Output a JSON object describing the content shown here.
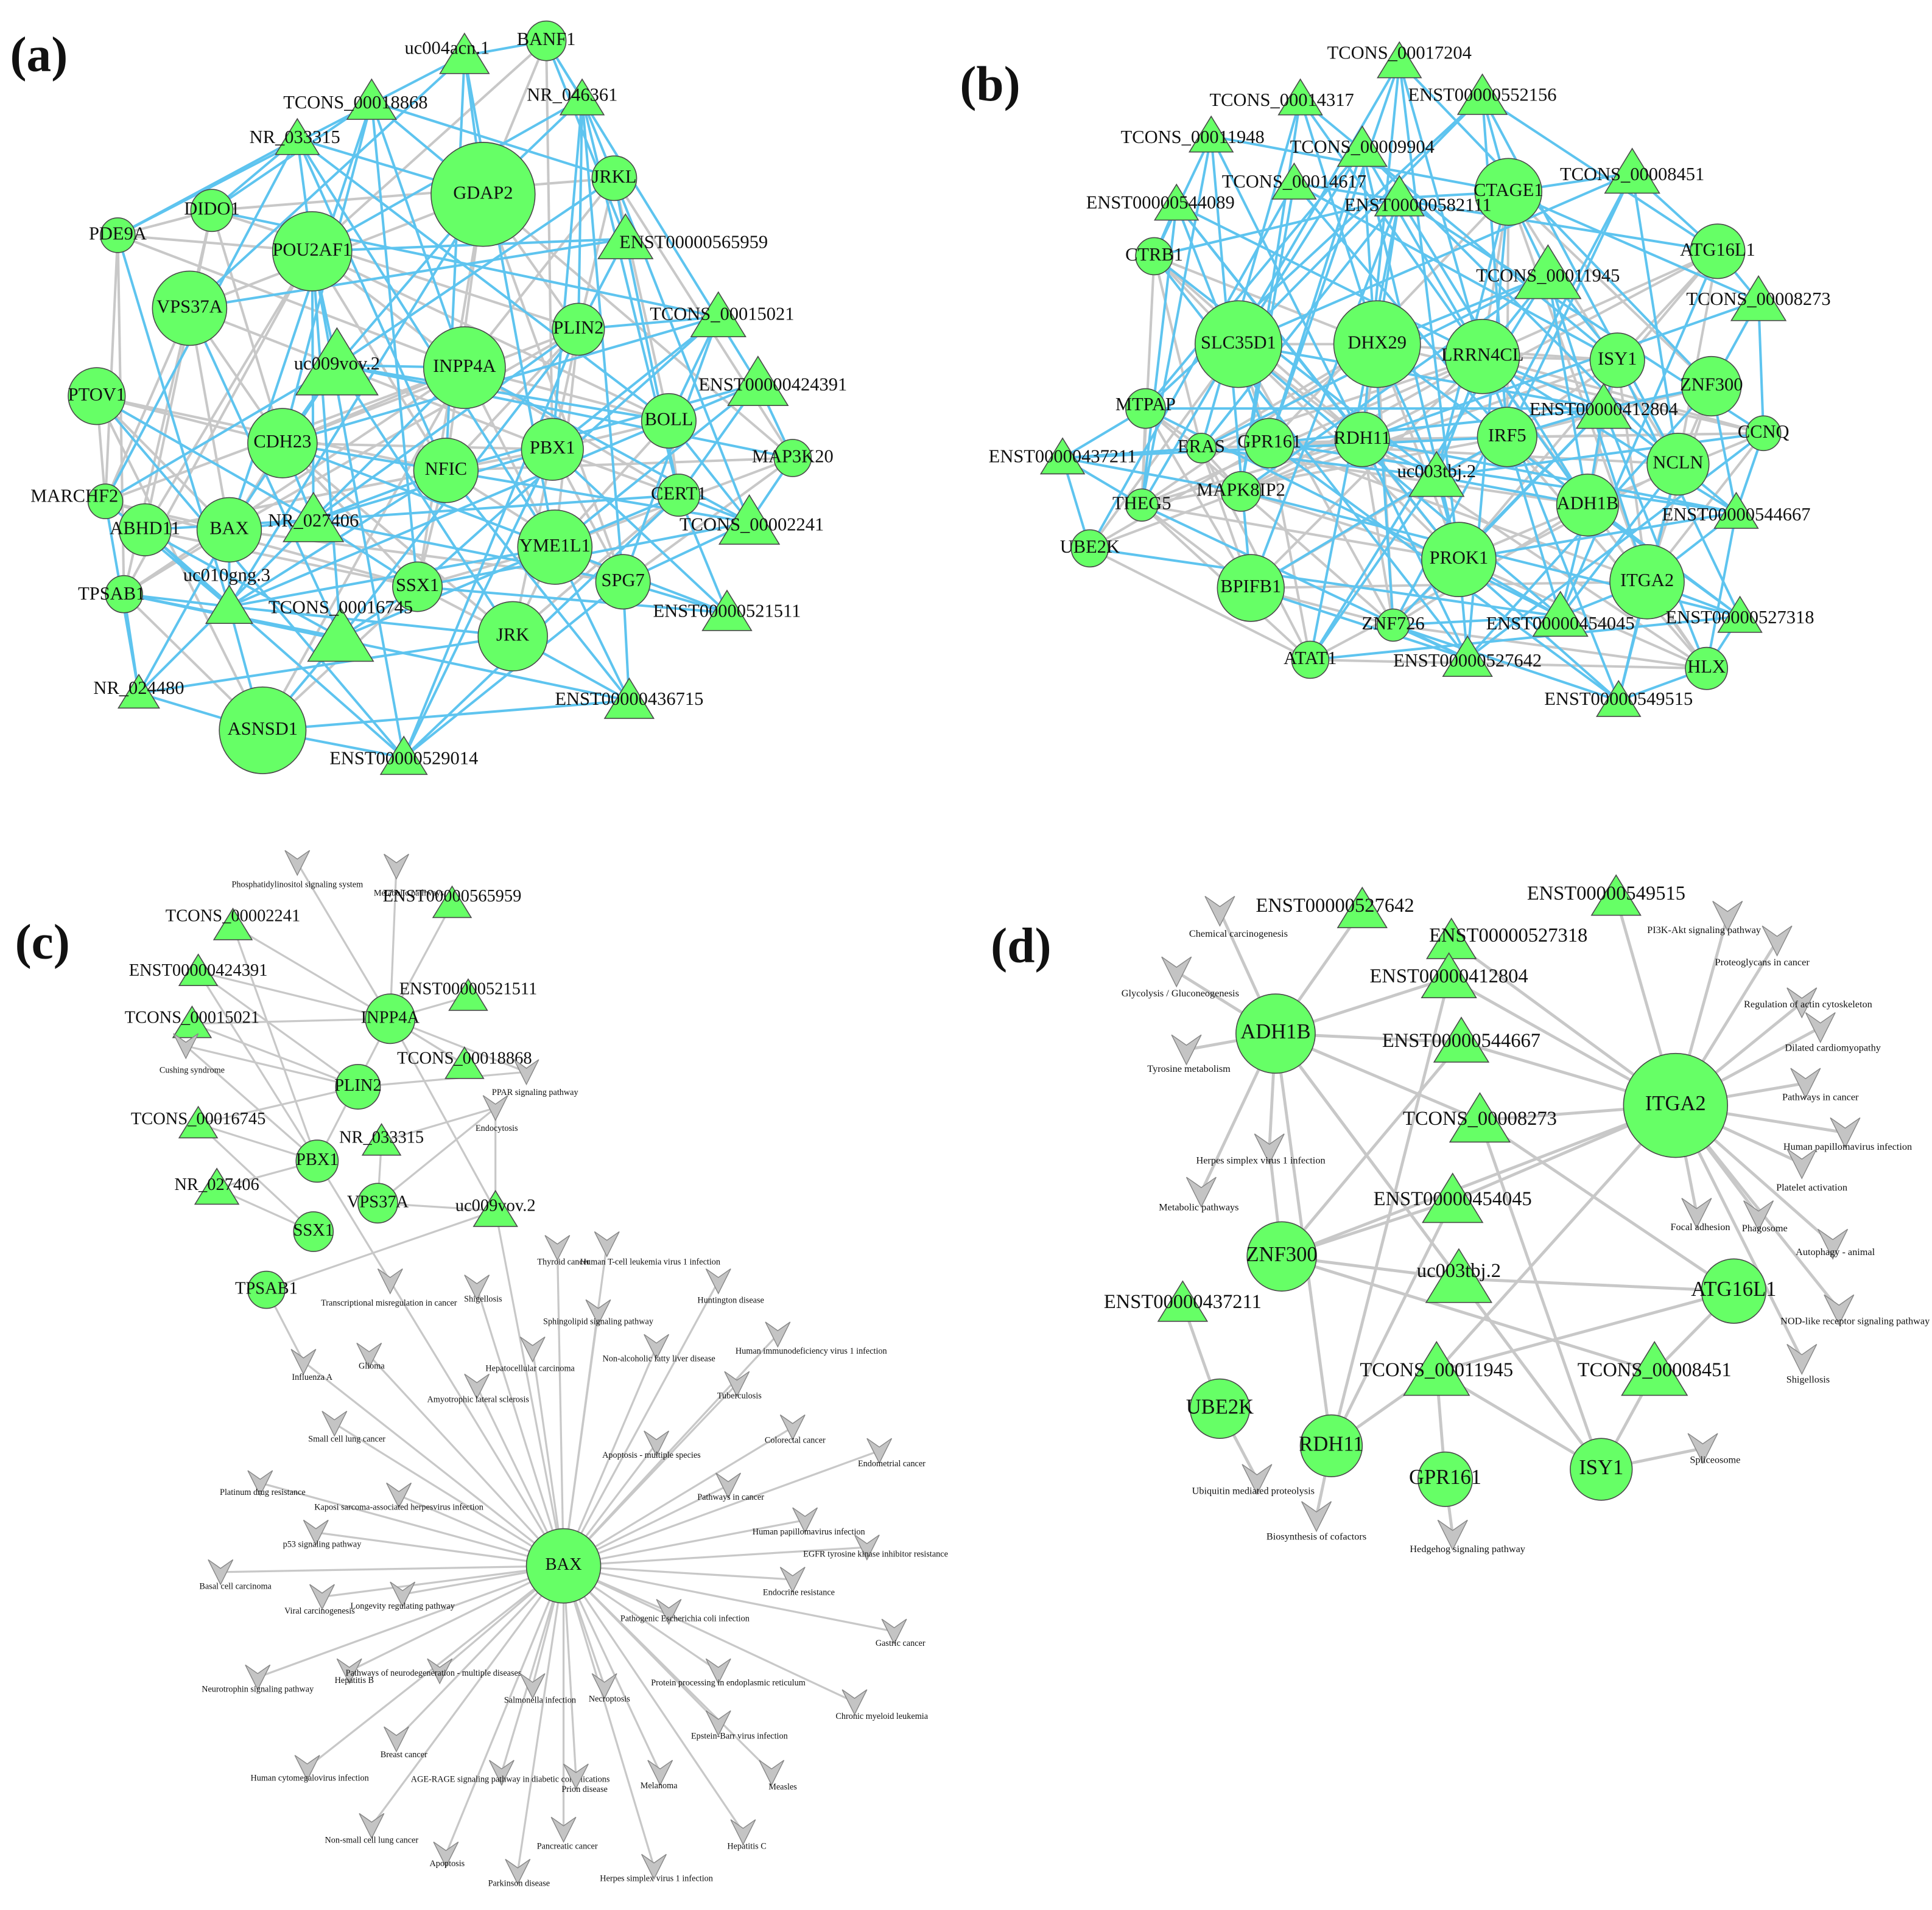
{
  "panels": [
    {
      "label": "(a)",
      "nodes": [
        "GDAP2",
        "POU2AF1",
        "INPP4A",
        "VPS37A",
        "CDH23",
        "NFIC",
        "PBX1",
        "BOLL",
        "PLIN2",
        "JRKL",
        "BANF1",
        "DIDO1",
        "PDE9A",
        "PTOV1",
        "MARCHF2",
        "ABHD11",
        "BAX",
        "TPSAB1",
        "SSX1",
        "YME1L1",
        "SPG7",
        "JRK",
        "CERT1",
        "MAP3K20",
        "ASNSD1",
        "uc004acn.1",
        "NR_046361",
        "TCONS_00018868",
        "NR_033315",
        "ENST00000565959",
        "TCONS_00015021",
        "uc009vov.2",
        "ENST00000424391",
        "NR_027406",
        "TCONS_00002241",
        "uc010gng.3",
        "TCONS_00016745",
        "ENST00000521511",
        "NR_024480",
        "ENST00000436715",
        "ENST00000529014"
      ]
    },
    {
      "label": "(b)",
      "nodes": [
        "CTAGE1",
        "SLC35D1",
        "DHX29",
        "LRRN4CL",
        "ISY1",
        "ZNF300",
        "ATG16L1",
        "CTRB1",
        "MTPAP",
        "ERAS",
        "GPR161",
        "MAPK8IP2",
        "RDH11",
        "IRF5",
        "CCNQ",
        "NCLN",
        "ADH1B",
        "PROK1",
        "ITGA2",
        "THEG5",
        "UBE2K",
        "BPIFB1",
        "ZNF726",
        "ATAT1",
        "HLX",
        "TCONS_00017204",
        "ENST00000552156",
        "TCONS_00014317",
        "TCONS_00011948",
        "TCONS_00009904",
        "TCONS_00014617",
        "ENST00000582111",
        "ENST00000544089",
        "TCONS_00008451",
        "TCONS_00011945",
        "TCONS_00008273",
        "ENST00000412804",
        "ENST00000437211",
        "uc003tbj.2",
        "ENST00000544667",
        "ENST00000454045",
        "ENST00000527318",
        "ENST00000527642",
        "ENST00000549515"
      ]
    },
    {
      "label": "(c)",
      "nodes": [
        "INPP4A",
        "PLIN2",
        "PBX1",
        "VPS37A",
        "SSX1",
        "TPSAB1",
        "BAX",
        "TCONS_00002241",
        "ENST00000565959",
        "ENST00000424391",
        "ENST00000521511",
        "TCONS_00015021",
        "TCONS_00018868",
        "TCONS_00016745",
        "NR_033315",
        "NR_027406",
        "uc009vov.2",
        "Phosphatidylinositol signaling system",
        "Metabolic pathways",
        "Cushing syndrome",
        "PPAR signaling pathway",
        "Endocytosis",
        "Transcriptional misregulation in cancer",
        "Shigellosis",
        "Thyroid cancer",
        "Human T-cell leukemia virus 1 infection",
        "Huntington disease",
        "Sphingolipid signaling pathway",
        "Non-alcoholic fatty liver disease",
        "Human immunodeficiency virus 1 infection",
        "Influenza A",
        "Glioma",
        "Hepatocellular carcinoma",
        "Amyotrophic lateral sclerosis",
        "Tuberculosis",
        "Small cell lung cancer",
        "Apoptosis - multiple species",
        "Colorectal cancer",
        "Endometrial cancer",
        "Platinum drug resistance",
        "Kaposi sarcoma-associated herpesvirus infection",
        "Pathways in cancer",
        "Human papillomavirus infection",
        "EGFR tyrosine kinase inhibitor resistance",
        "p53 signaling pathway",
        "Basal cell carcinoma",
        "Viral carcinogenesis",
        "Longevity regulating pathway",
        "Endocrine resistance",
        "Pathogenic Escherichia coli infection",
        "Gastric cancer",
        "Neurotrophin signaling pathway",
        "Hepatitis B",
        "Pathways of neurodegeneration - multiple diseases",
        "Protein processing in endoplasmic reticulum",
        "Chronic myeloid leukemia",
        "Salmonella infection",
        "Necroptosis",
        "Epstein-Barr virus infection",
        "Breast cancer",
        "Human cytomegalovirus infection",
        "AGE-RAGE signaling pathway in diabetic complications",
        "Prion disease",
        "Melanoma",
        "Measles",
        "Non-small cell lung cancer",
        "Pancreatic cancer",
        "Hepatitis C",
        "Apoptosis",
        "Parkinson disease",
        "Herpes simplex virus 1 infection"
      ]
    },
    {
      "label": "(d)",
      "nodes": [
        "ADH1B",
        "ITGA2",
        "ZNF300",
        "ATG16L1",
        "UBE2K",
        "RDH11",
        "GPR161",
        "ISY1",
        "ENST00000527642",
        "ENST00000549515",
        "ENST00000527318",
        "ENST00000412804",
        "ENST00000544667",
        "TCONS_00008273",
        "ENST00000454045",
        "uc003tbj.2",
        "ENST00000437211",
        "TCONS_00011945",
        "TCONS_00008451",
        "Chemical carcinogenesis",
        "Glycolysis / Gluconeogenesis",
        "Tyrosine metabolism",
        "Herpes simplex virus 1 infection",
        "Metabolic pathways",
        "Ubiquitin mediated proteolysis",
        "Biosynthesis of cofactors",
        "Hedgehog signaling pathway",
        "Spliceosome",
        "PI3K-Akt signaling pathway",
        "Proteoglycans in cancer",
        "Regulation of actin cytoskeleton",
        "Dilated cardiomyopathy",
        "Pathways in cancer",
        "Human papillomavirus infection",
        "Platelet activation",
        "Focal adhesion",
        "Phagosome",
        "Autophagy - animal",
        "NOD-like receptor signaling pathway",
        "Shigellosis"
      ]
    }
  ]
}
